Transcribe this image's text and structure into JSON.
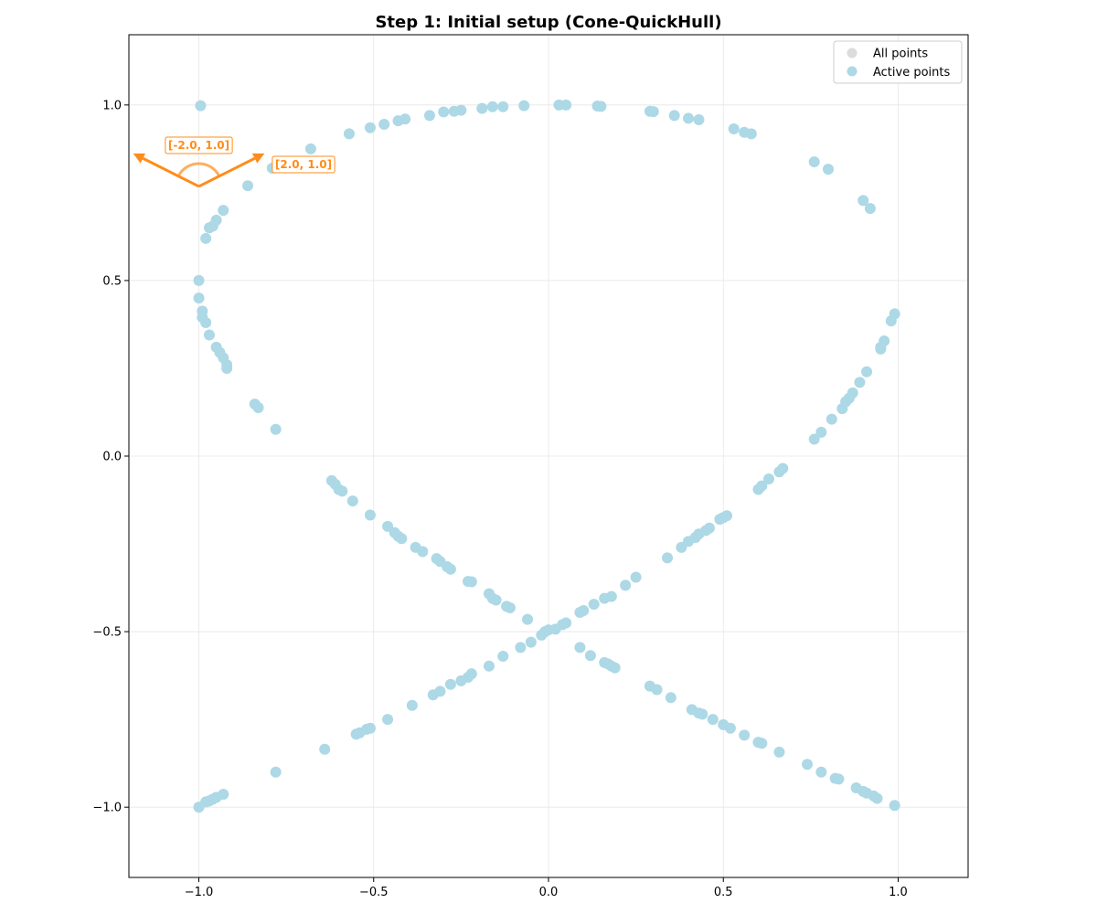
{
  "chart_data": {
    "type": "scatter",
    "title": "Step 1: Initial setup (Cone-QuickHull)",
    "xlabel": "",
    "ylabel": "",
    "xlim": [
      -1.2,
      1.2
    ],
    "ylim": [
      -1.2,
      1.2
    ],
    "xticks": [
      -1.0,
      -0.5,
      0.0,
      0.5,
      1.0
    ],
    "yticks": [
      -1.0,
      -0.5,
      0.0,
      0.5,
      1.0
    ],
    "xtick_labels": [
      "−1.0",
      "−0.5",
      "0.0",
      "0.5",
      "1.0"
    ],
    "ytick_labels": [
      "−1.0",
      "−0.5",
      "0.0",
      "0.5",
      "1.0"
    ],
    "grid": true,
    "legend_position": "top-right",
    "series": [
      {
        "name": "All points",
        "color": "#dcdcdc",
        "points": []
      },
      {
        "name": "Active points",
        "color": "#add8e6",
        "points": [
          [
            -0.995,
            0.998
          ],
          [
            -0.98,
            0.62
          ],
          [
            -0.97,
            0.65
          ],
          [
            -0.96,
            0.655
          ],
          [
            -0.95,
            0.672
          ],
          [
            -0.93,
            0.7
          ],
          [
            -0.86,
            0.77
          ],
          [
            -0.79,
            0.82
          ],
          [
            -0.68,
            0.875
          ],
          [
            -0.57,
            0.918
          ],
          [
            -0.51,
            0.935
          ],
          [
            -0.47,
            0.945
          ],
          [
            -0.43,
            0.955
          ],
          [
            -0.41,
            0.96
          ],
          [
            -0.34,
            0.97
          ],
          [
            -0.3,
            0.98
          ],
          [
            -0.27,
            0.982
          ],
          [
            -0.25,
            0.985
          ],
          [
            -0.19,
            0.99
          ],
          [
            -0.16,
            0.995
          ],
          [
            -0.13,
            0.995
          ],
          [
            -0.07,
            0.998
          ],
          [
            0.03,
            1.0
          ],
          [
            0.05,
            1.0
          ],
          [
            0.14,
            0.997
          ],
          [
            0.15,
            0.996
          ],
          [
            0.29,
            0.982
          ],
          [
            0.3,
            0.981
          ],
          [
            0.36,
            0.97
          ],
          [
            0.4,
            0.962
          ],
          [
            0.43,
            0.958
          ],
          [
            0.53,
            0.932
          ],
          [
            0.56,
            0.922
          ],
          [
            0.58,
            0.918
          ],
          [
            0.76,
            0.838
          ],
          [
            0.8,
            0.817
          ],
          [
            0.9,
            0.728
          ],
          [
            0.92,
            0.705
          ],
          [
            -1.0,
            0.5
          ],
          [
            -1.0,
            0.45
          ],
          [
            -0.99,
            0.413
          ],
          [
            -0.99,
            0.395
          ],
          [
            -0.98,
            0.38
          ],
          [
            -0.97,
            0.345
          ],
          [
            -0.95,
            0.31
          ],
          [
            -0.94,
            0.295
          ],
          [
            -0.93,
            0.28
          ],
          [
            -0.92,
            0.26
          ],
          [
            -0.92,
            0.25
          ],
          [
            -0.84,
            0.148
          ],
          [
            -0.83,
            0.138
          ],
          [
            -0.78,
            0.076
          ],
          [
            -0.62,
            -0.07
          ],
          [
            -0.61,
            -0.08
          ],
          [
            -0.6,
            -0.095
          ],
          [
            -0.59,
            -0.1
          ],
          [
            -0.56,
            -0.128
          ],
          [
            -0.51,
            -0.168
          ],
          [
            -0.46,
            -0.2
          ],
          [
            -0.44,
            -0.218
          ],
          [
            -0.43,
            -0.228
          ],
          [
            -0.42,
            -0.235
          ],
          [
            -0.38,
            -0.26
          ],
          [
            -0.36,
            -0.272
          ],
          [
            -0.32,
            -0.292
          ],
          [
            -0.31,
            -0.3
          ],
          [
            -0.29,
            -0.315
          ],
          [
            -0.28,
            -0.322
          ],
          [
            -0.23,
            -0.357
          ],
          [
            -0.22,
            -0.358
          ],
          [
            -0.17,
            -0.392
          ],
          [
            -0.16,
            -0.405
          ],
          [
            -0.15,
            -0.41
          ],
          [
            -0.12,
            -0.428
          ],
          [
            -0.11,
            -0.432
          ],
          [
            -0.06,
            -0.465
          ],
          [
            -0.01,
            -0.5
          ],
          [
            0.09,
            -0.545
          ],
          [
            0.12,
            -0.568
          ],
          [
            0.16,
            -0.588
          ],
          [
            0.17,
            -0.592
          ],
          [
            0.18,
            -0.598
          ],
          [
            0.19,
            -0.603
          ],
          [
            0.29,
            -0.655
          ],
          [
            0.31,
            -0.665
          ],
          [
            0.35,
            -0.688
          ],
          [
            0.41,
            -0.722
          ],
          [
            0.43,
            -0.732
          ],
          [
            0.44,
            -0.735
          ],
          [
            0.47,
            -0.75
          ],
          [
            0.5,
            -0.765
          ],
          [
            0.52,
            -0.775
          ],
          [
            0.56,
            -0.795
          ],
          [
            0.6,
            -0.815
          ],
          [
            0.61,
            -0.818
          ],
          [
            0.66,
            -0.843
          ],
          [
            0.74,
            -0.878
          ],
          [
            0.78,
            -0.9
          ],
          [
            0.82,
            -0.918
          ],
          [
            0.83,
            -0.92
          ],
          [
            0.88,
            -0.945
          ],
          [
            0.9,
            -0.955
          ],
          [
            0.91,
            -0.96
          ],
          [
            0.93,
            -0.968
          ],
          [
            0.94,
            -0.975
          ],
          [
            0.99,
            -0.995
          ],
          [
            -1.0,
            -1.0
          ],
          [
            -0.98,
            -0.985
          ],
          [
            -0.97,
            -0.982
          ],
          [
            -0.96,
            -0.977
          ],
          [
            -0.95,
            -0.972
          ],
          [
            -0.93,
            -0.963
          ],
          [
            -0.78,
            -0.9
          ],
          [
            -0.64,
            -0.835
          ],
          [
            -0.55,
            -0.792
          ],
          [
            -0.54,
            -0.788
          ],
          [
            -0.52,
            -0.778
          ],
          [
            -0.51,
            -0.775
          ],
          [
            -0.46,
            -0.75
          ],
          [
            -0.39,
            -0.71
          ],
          [
            -0.33,
            -0.68
          ],
          [
            -0.31,
            -0.67
          ],
          [
            -0.28,
            -0.65
          ],
          [
            -0.25,
            -0.64
          ],
          [
            -0.23,
            -0.63
          ],
          [
            -0.22,
            -0.62
          ],
          [
            -0.17,
            -0.598
          ],
          [
            -0.13,
            -0.57
          ],
          [
            -0.08,
            -0.545
          ],
          [
            -0.05,
            -0.53
          ],
          [
            -0.02,
            -0.51
          ],
          [
            0.0,
            -0.495
          ],
          [
            0.02,
            -0.493
          ],
          [
            0.04,
            -0.48
          ],
          [
            0.05,
            -0.475
          ],
          [
            0.09,
            -0.445
          ],
          [
            0.1,
            -0.44
          ],
          [
            0.13,
            -0.422
          ],
          [
            0.16,
            -0.405
          ],
          [
            0.18,
            -0.4
          ],
          [
            0.22,
            -0.368
          ],
          [
            0.25,
            -0.345
          ],
          [
            0.34,
            -0.29
          ],
          [
            0.38,
            -0.26
          ],
          [
            0.4,
            -0.243
          ],
          [
            0.42,
            -0.232
          ],
          [
            0.43,
            -0.222
          ],
          [
            0.45,
            -0.212
          ],
          [
            0.46,
            -0.205
          ],
          [
            0.49,
            -0.18
          ],
          [
            0.5,
            -0.175
          ],
          [
            0.51,
            -0.17
          ],
          [
            0.6,
            -0.095
          ],
          [
            0.61,
            -0.085
          ],
          [
            0.63,
            -0.065
          ],
          [
            0.66,
            -0.045
          ],
          [
            0.67,
            -0.035
          ],
          [
            0.76,
            0.048
          ],
          [
            0.78,
            0.068
          ],
          [
            0.81,
            0.105
          ],
          [
            0.84,
            0.135
          ],
          [
            0.85,
            0.155
          ],
          [
            0.86,
            0.165
          ],
          [
            0.87,
            0.18
          ],
          [
            0.89,
            0.21
          ],
          [
            0.91,
            0.24
          ],
          [
            0.95,
            0.305
          ],
          [
            0.95,
            0.31
          ],
          [
            0.96,
            0.328
          ],
          [
            0.98,
            0.385
          ],
          [
            0.99,
            0.405
          ]
        ]
      }
    ],
    "cone": {
      "apex": [
        -1.0,
        0.768
      ],
      "direction_labels": [
        "[-2.0, 1.0]",
        "[2.0, 1.0]"
      ],
      "directions": [
        [
          -2.0,
          1.0
        ],
        [
          2.0,
          1.0
        ]
      ],
      "color": "#ff8c1a"
    }
  }
}
